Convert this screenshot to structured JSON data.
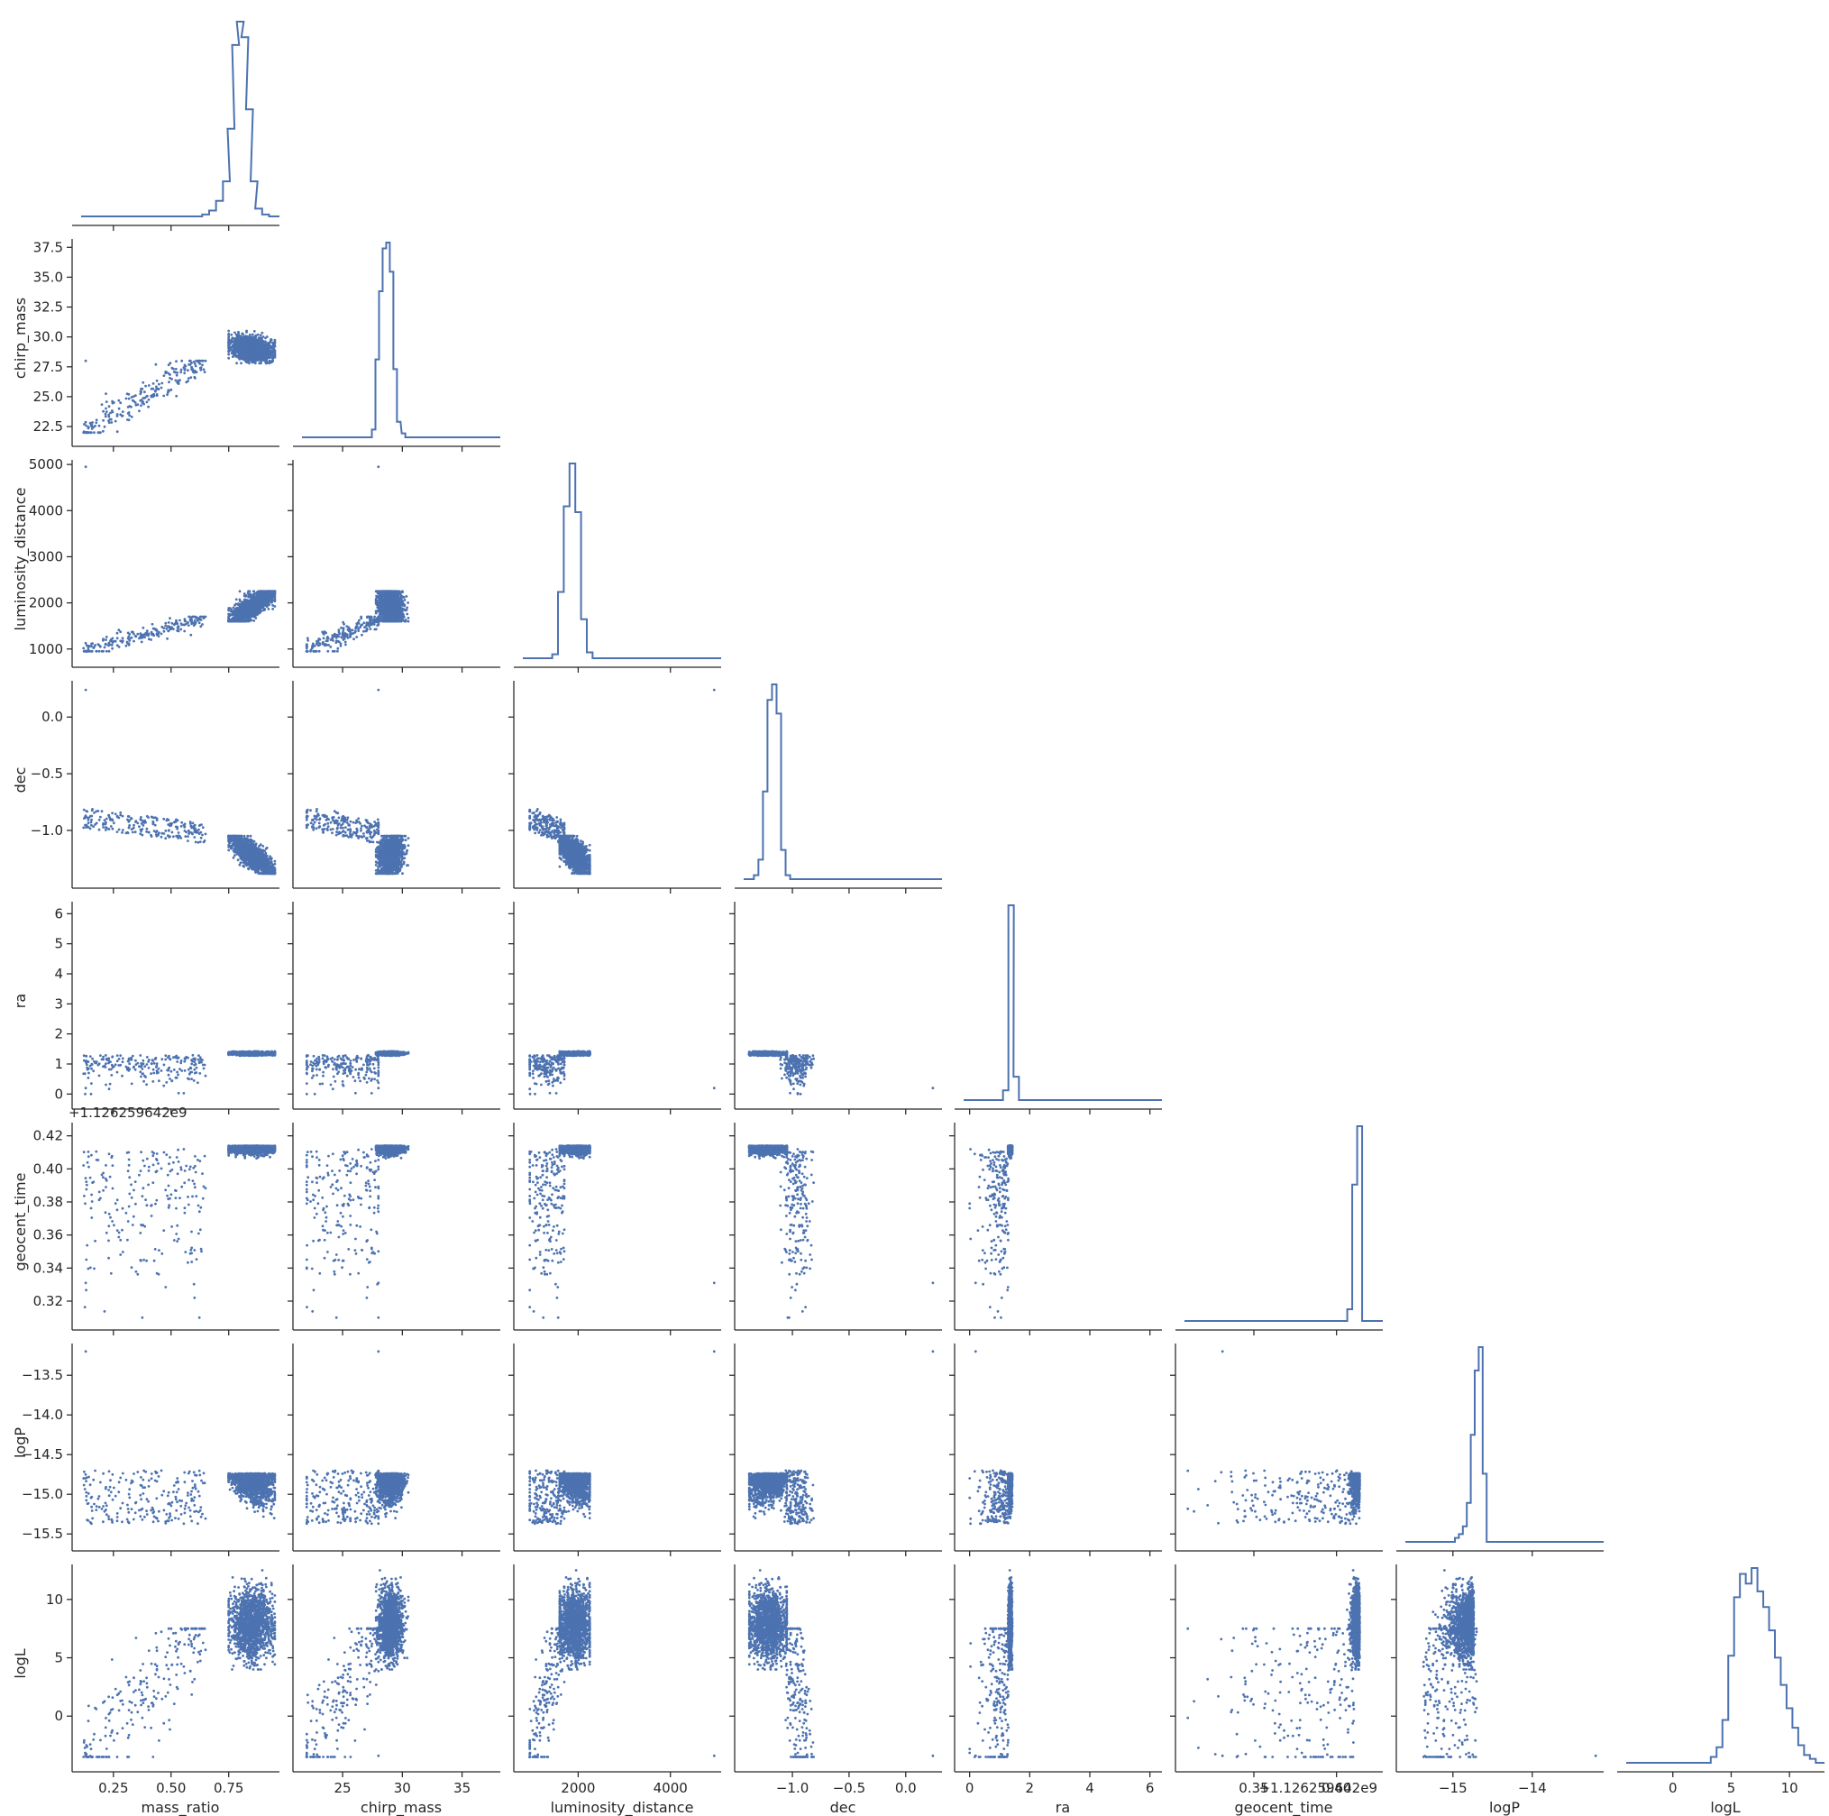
{
  "colors": {
    "series": "#4c72b0",
    "axes": "#262626",
    "background": "#ffffff"
  },
  "chart_data": {
    "type": "pairplot",
    "corner": true,
    "diag_kind": "histogram (step)",
    "grid": false,
    "variables": [
      "mass_ratio",
      "chirp_mass",
      "luminosity_distance",
      "dec",
      "ra",
      "geocent_time",
      "logP",
      "logL"
    ],
    "axes": {
      "mass_ratio": {
        "range": [
          0.11,
          0.97
        ],
        "ticks": [
          0.25,
          0.5,
          0.75
        ],
        "tick_labels": [
          "0.25",
          "0.50",
          "0.75"
        ]
      },
      "chirp_mass": {
        "range": [
          21.6,
          38.2
        ],
        "ticks": [
          25,
          30,
          35
        ],
        "tick_labels": [
          "25",
          "30",
          "35"
        ],
        "yticks": [
          22.5,
          25,
          27.5,
          30,
          32.5,
          35,
          37.5
        ],
        "ytick_labels": [
          "22.5",
          "25.0",
          "27.5",
          "30.0",
          "32.5",
          "35.0",
          "37.5"
        ]
      },
      "luminosity_distance": {
        "range": [
          800,
          5100
        ],
        "ticks": [
          2000,
          4000
        ],
        "tick_labels": [
          "2000",
          "4000"
        ],
        "yticks": [
          1000,
          2000,
          3000,
          4000,
          5000
        ],
        "ytick_labels": [
          "1000",
          "2000",
          "3000",
          "4000",
          "5000"
        ]
      },
      "dec": {
        "range": [
          -1.43,
          0.32
        ],
        "ticks": [
          -1.0,
          -0.5,
          0.0
        ],
        "tick_labels": [
          "−1.0",
          "−0.5",
          "0.0"
        ]
      },
      "ra": {
        "range": [
          -0.2,
          6.4
        ],
        "ticks": [
          0,
          2,
          4,
          6
        ],
        "tick_labels": [
          "0",
          "2",
          "4",
          "6"
        ],
        "yticks": [
          0,
          1,
          2,
          3,
          4,
          5,
          6
        ],
        "ytick_labels": [
          "0",
          "1",
          "2",
          "3",
          "4",
          "5",
          "6"
        ]
      },
      "geocent_time": {
        "range": [
          0.308,
          0.428
        ],
        "ticks": [
          0.35,
          0.4
        ],
        "tick_labels": [
          "0.35",
          "0.40"
        ],
        "yticks": [
          0.32,
          0.34,
          0.36,
          0.38,
          0.4,
          0.42
        ],
        "ytick_labels": [
          "0.32",
          "0.34",
          "0.36",
          "0.38",
          "0.40",
          "0.42"
        ],
        "offset_label": "+1.126259642e9"
      },
      "logP": {
        "range": [
          -15.6,
          -13.1
        ],
        "ticks": [
          -15,
          -14
        ],
        "tick_labels": [
          "−15",
          "−14"
        ],
        "yticks": [
          -15.5,
          -15.0,
          -14.5,
          -14.0,
          -13.5
        ],
        "ytick_labels": [
          "−15.5",
          "−15.0",
          "−14.5",
          "−14.0",
          "−13.5"
        ]
      },
      "logL": {
        "range": [
          -4.0,
          13.0
        ],
        "ticks": [
          0,
          5,
          10
        ],
        "tick_labels": [
          "0",
          "5",
          "10"
        ],
        "yticks": [
          0,
          5,
          10
        ],
        "ytick_labels": [
          "0",
          "5",
          "10"
        ]
      }
    },
    "histograms": {
      "mass_ratio": {
        "centers": [
          0.65,
          0.68,
          0.71,
          0.74,
          0.76,
          0.78,
          0.8,
          0.82,
          0.84,
          0.86,
          0.88,
          0.91
        ],
        "counts": [
          1,
          3,
          8,
          18,
          45,
          88,
          100,
          92,
          55,
          18,
          4,
          1
        ]
      },
      "chirp_mass": {
        "centers": [
          27.6,
          27.9,
          28.2,
          28.5,
          28.8,
          29.1,
          29.4,
          29.7,
          30.1
        ],
        "counts": [
          4,
          40,
          75,
          97,
          100,
          85,
          35,
          8,
          2
        ]
      },
      "luminosity_distance": {
        "centers": [
          1500,
          1625,
          1750,
          1875,
          2000,
          2125,
          2250
        ],
        "counts": [
          2,
          34,
          78,
          100,
          75,
          20,
          3
        ]
      },
      "dec": {
        "centers": [
          -1.32,
          -1.28,
          -1.24,
          -1.2,
          -1.16,
          -1.12,
          -1.08,
          -1.04
        ],
        "counts": [
          2,
          10,
          45,
          92,
          100,
          85,
          15,
          2
        ]
      },
      "ra": {
        "centers": [
          1.2,
          1.38,
          1.55
        ],
        "counts": [
          5,
          100,
          12
        ]
      },
      "geocent_time": {
        "centers": [
          0.408,
          0.411,
          0.414
        ],
        "counts": [
          6,
          70,
          100
        ]
      },
      "logP": {
        "centers": [
          -14.95,
          -14.9,
          -14.85,
          -14.8,
          -14.75,
          -14.7,
          -14.65,
          -14.6
        ],
        "counts": [
          2,
          4,
          8,
          20,
          55,
          88,
          100,
          35
        ]
      },
      "logL": {
        "centers": [
          3.5,
          4.0,
          4.5,
          5.0,
          5.5,
          6.0,
          6.5,
          7.0,
          7.5,
          8.0,
          8.5,
          9.0,
          9.5,
          10.0,
          10.5,
          11.0,
          11.5,
          12.0
        ],
        "counts": [
          3,
          8,
          22,
          55,
          85,
          97,
          92,
          100,
          88,
          80,
          68,
          54,
          40,
          28,
          18,
          9,
          4,
          2
        ]
      }
    },
    "point_cloud": {
      "note_values": "posterior sample clusters, in data units",
      "core": {
        "mass_ratio": [
          0.75,
          0.95
        ],
        "chirp_mass": [
          27.8,
          30.5
        ],
        "luminosity_distance": [
          1600,
          2250
        ],
        "dec": [
          -1.38,
          -1.05
        ],
        "ra": [
          1.28,
          1.42
        ],
        "geocent_time": [
          0.405,
          0.414
        ],
        "logP": [
          -15.3,
          -14.55
        ],
        "logL": [
          4.0,
          12.5
        ]
      },
      "tail": {
        "mass_ratio": [
          0.12,
          0.65
        ],
        "chirp_mass": [
          22.0,
          28.0
        ],
        "luminosity_distance": [
          950,
          1700
        ],
        "dec": [
          -1.25,
          -0.8
        ],
        "ra": [
          0.0,
          1.3
        ],
        "geocent_time": [
          0.31,
          0.412
        ],
        "logP": [
          -15.45,
          -14.7
        ],
        "logL": [
          -3.5,
          7.5
        ]
      },
      "outlier": {
        "mass_ratio": 0.13,
        "chirp_mass": 28.0,
        "luminosity_distance": 4950,
        "dec": 0.24,
        "ra": 0.2,
        "geocent_time": 0.331,
        "logP": -13.2,
        "logL": -3.4
      }
    }
  }
}
